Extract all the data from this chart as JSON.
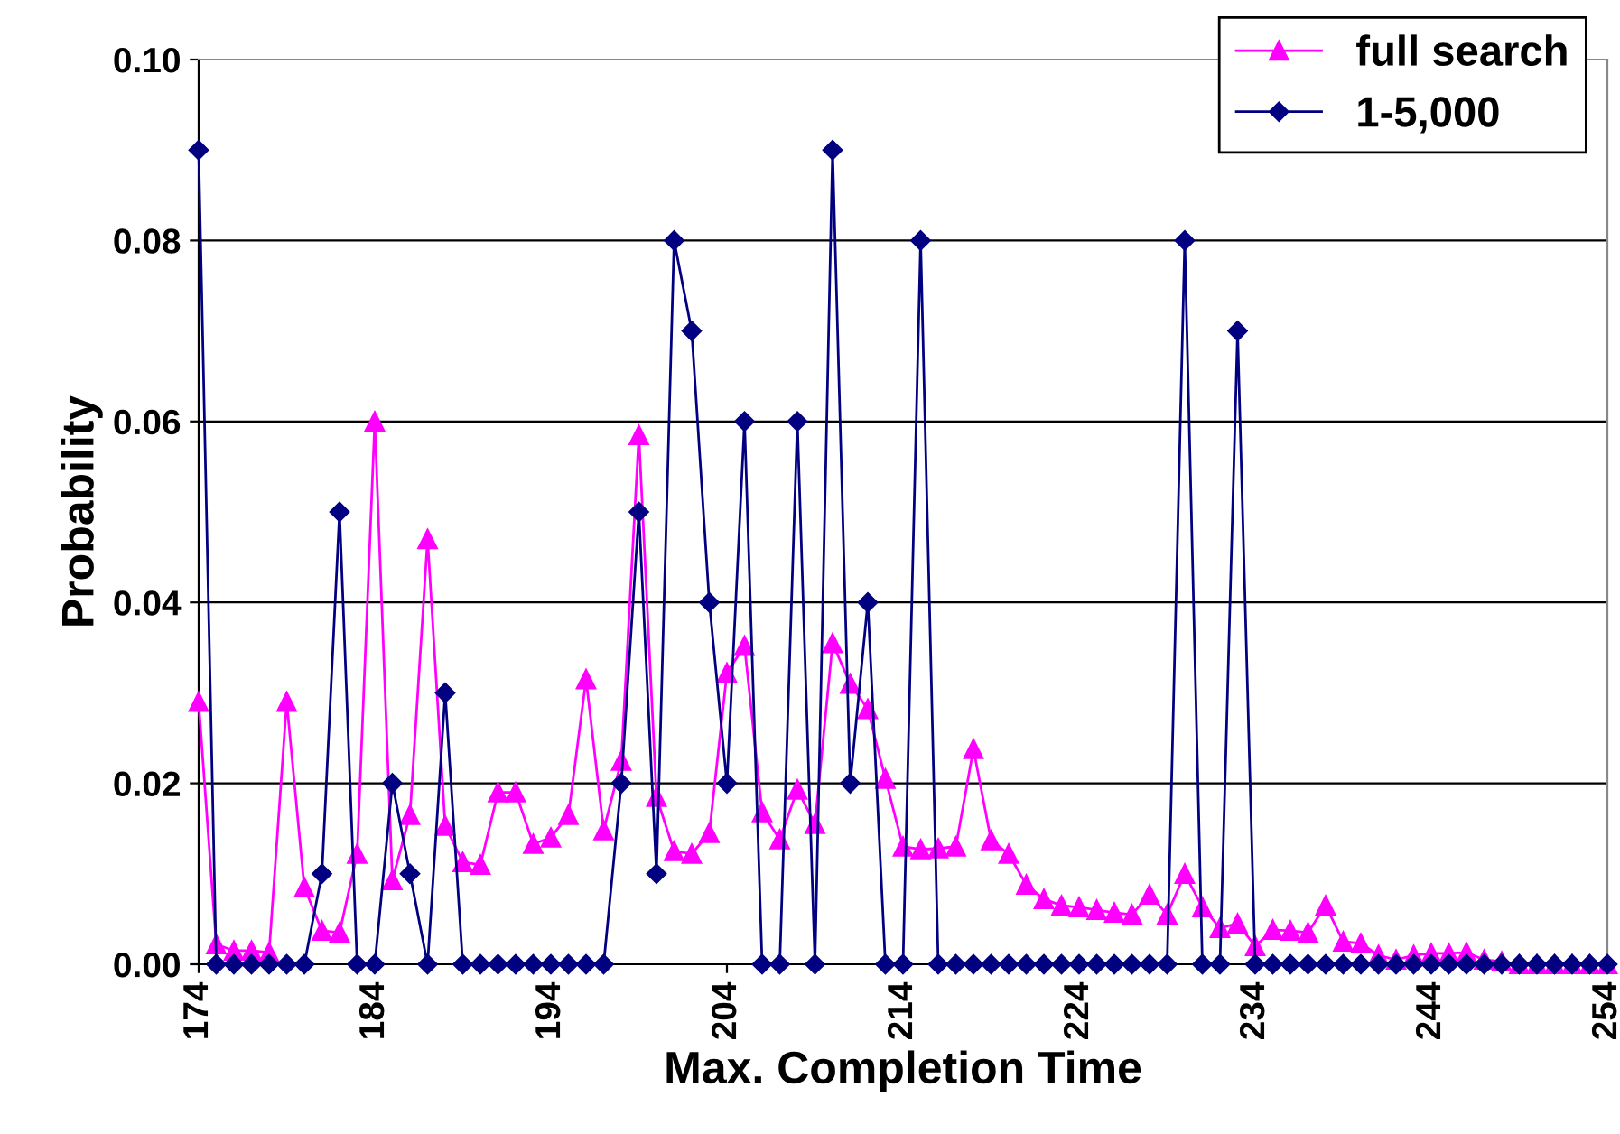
{
  "chart_data": {
    "type": "line",
    "xlabel": "Max. Completion Time",
    "ylabel": "Probability",
    "x": [
      174,
      175,
      176,
      177,
      178,
      179,
      180,
      181,
      182,
      183,
      184,
      185,
      186,
      187,
      188,
      189,
      190,
      191,
      192,
      193,
      194,
      195,
      196,
      197,
      198,
      199,
      200,
      201,
      202,
      203,
      204,
      205,
      206,
      207,
      208,
      209,
      210,
      211,
      212,
      213,
      214,
      215,
      216,
      217,
      218,
      219,
      220,
      221,
      222,
      223,
      224,
      225,
      226,
      227,
      228,
      229,
      230,
      231,
      232,
      233,
      234,
      235,
      236,
      237,
      238,
      239,
      240,
      241,
      242,
      243,
      244,
      245,
      246,
      247,
      248,
      249,
      250,
      251,
      252,
      253,
      254
    ],
    "series": [
      {
        "name": "full search",
        "color": "#ff00ff",
        "marker": "triangle",
        "values": [
          0.029,
          0.0022,
          0.0015,
          0.0015,
          0.0013,
          0.029,
          0.0085,
          0.0037,
          0.0035,
          0.0122,
          0.06,
          0.0093,
          0.0165,
          0.047,
          0.0153,
          0.0113,
          0.011,
          0.019,
          0.019,
          0.0133,
          0.014,
          0.0165,
          0.0315,
          0.0148,
          0.0225,
          0.0585,
          0.0185,
          0.0125,
          0.0122,
          0.0145,
          0.0322,
          0.0352,
          0.0168,
          0.0138,
          0.0193,
          0.0155,
          0.0355,
          0.031,
          0.0282,
          0.0205,
          0.013,
          0.0127,
          0.0128,
          0.013,
          0.0238,
          0.0137,
          0.0122,
          0.0088,
          0.0072,
          0.0065,
          0.0063,
          0.006,
          0.0057,
          0.0055,
          0.0077,
          0.0055,
          0.01,
          0.0063,
          0.004,
          0.0045,
          0.002,
          0.0038,
          0.0037,
          0.0035,
          0.0065,
          0.0025,
          0.0023,
          0.001,
          0.0005,
          0.001,
          0.0012,
          0.0012,
          0.0013,
          0.0005,
          0.0003,
          0,
          0,
          0,
          0,
          0,
          0
        ]
      },
      {
        "name": "1-5,000",
        "color": "#000080",
        "marker": "diamond",
        "values": [
          0.09,
          0,
          0,
          0,
          0,
          0,
          0,
          0.01,
          0.05,
          0,
          0,
          0.02,
          0.01,
          0,
          0.03,
          0,
          0,
          0,
          0,
          0,
          0,
          0,
          0,
          0,
          0.02,
          0.05,
          0.01,
          0.08,
          0.07,
          0.04,
          0.02,
          0.06,
          0,
          0,
          0.06,
          0,
          0.09,
          0.02,
          0.04,
          0,
          0,
          0.08,
          0,
          0,
          0,
          0,
          0,
          0,
          0,
          0,
          0,
          0,
          0,
          0,
          0,
          0,
          0.08,
          0,
          0,
          0.07,
          0,
          0,
          0,
          0,
          0,
          0,
          0,
          0,
          0,
          0,
          0,
          0,
          0,
          0,
          0,
          0,
          0,
          0,
          0,
          0,
          0
        ]
      }
    ],
    "xlim": [
      174,
      254
    ],
    "xticks": [
      174,
      184,
      194,
      204,
      214,
      224,
      234,
      244,
      254
    ],
    "ylim": [
      0,
      0.1
    ],
    "yticks": [
      {
        "value": 0,
        "label": "0.00"
      },
      {
        "value": 0.02,
        "label": "0.02"
      },
      {
        "value": 0.04,
        "label": "0.04"
      },
      {
        "value": 0.06,
        "label": "0.06"
      },
      {
        "value": 0.08,
        "label": "0.08"
      },
      {
        "value": 0.1,
        "label": "0.10"
      }
    ],
    "grid": "y",
    "legend": "top right",
    "line_style": "solid"
  }
}
